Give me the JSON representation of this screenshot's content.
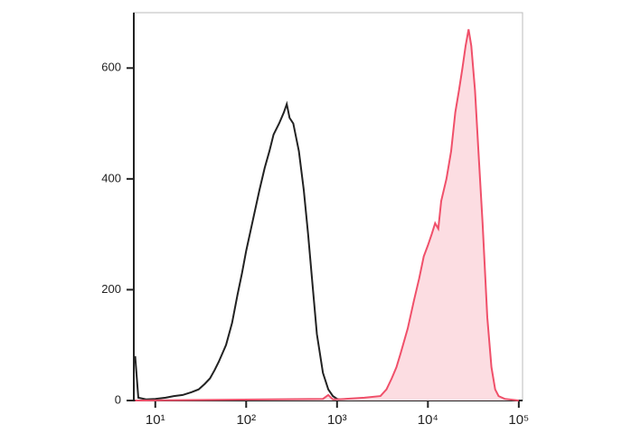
{
  "chart_data": {
    "type": "histogram-line",
    "xscale": "log",
    "xlim": [
      5.8,
      110000
    ],
    "ylim": [
      0,
      700
    ],
    "xticks": [
      {
        "value": 10,
        "label": "10¹"
      },
      {
        "value": 100,
        "label": "10²"
      },
      {
        "value": 1000,
        "label": "10³"
      },
      {
        "value": 10000,
        "label": "10⁴"
      },
      {
        "value": 100000,
        "label": "10⁵"
      }
    ],
    "yticks": [
      0,
      200,
      400,
      600
    ],
    "series": [
      {
        "color": "#222222",
        "fill": null,
        "x": [
          6,
          6.5,
          8,
          10,
          13,
          16,
          20,
          25,
          30,
          35,
          40,
          45,
          50,
          60,
          70,
          80,
          90,
          100,
          120,
          140,
          160,
          180,
          200,
          230,
          260,
          280,
          300,
          330,
          380,
          430,
          480,
          530,
          600,
          700,
          800,
          900,
          1000,
          1200
        ],
        "values": [
          80,
          5,
          2,
          3,
          5,
          8,
          10,
          15,
          20,
          30,
          40,
          55,
          70,
          100,
          140,
          190,
          230,
          270,
          330,
          380,
          420,
          450,
          480,
          500,
          520,
          535,
          510,
          500,
          450,
          380,
          300,
          220,
          120,
          50,
          20,
          8,
          3,
          0
        ]
      },
      {
        "color": "#f0506a",
        "fill": "#fcdde2",
        "x": [
          6,
          700,
          800,
          900,
          1000,
          2000,
          3000,
          3500,
          4000,
          4500,
          5000,
          6000,
          7000,
          8000,
          9000,
          10000,
          11000,
          12000,
          13000,
          14000,
          16000,
          18000,
          20000,
          22000,
          24000,
          26000,
          28000,
          30000,
          33000,
          36000,
          40000,
          45000,
          50000,
          55000,
          60000,
          70000,
          100000
        ],
        "values": [
          0,
          3,
          10,
          2,
          2,
          5,
          8,
          20,
          40,
          60,
          85,
          130,
          180,
          220,
          260,
          280,
          300,
          320,
          310,
          360,
          400,
          450,
          520,
          560,
          600,
          640,
          670,
          640,
          560,
          450,
          320,
          150,
          60,
          20,
          8,
          3,
          0
        ]
      }
    ]
  }
}
